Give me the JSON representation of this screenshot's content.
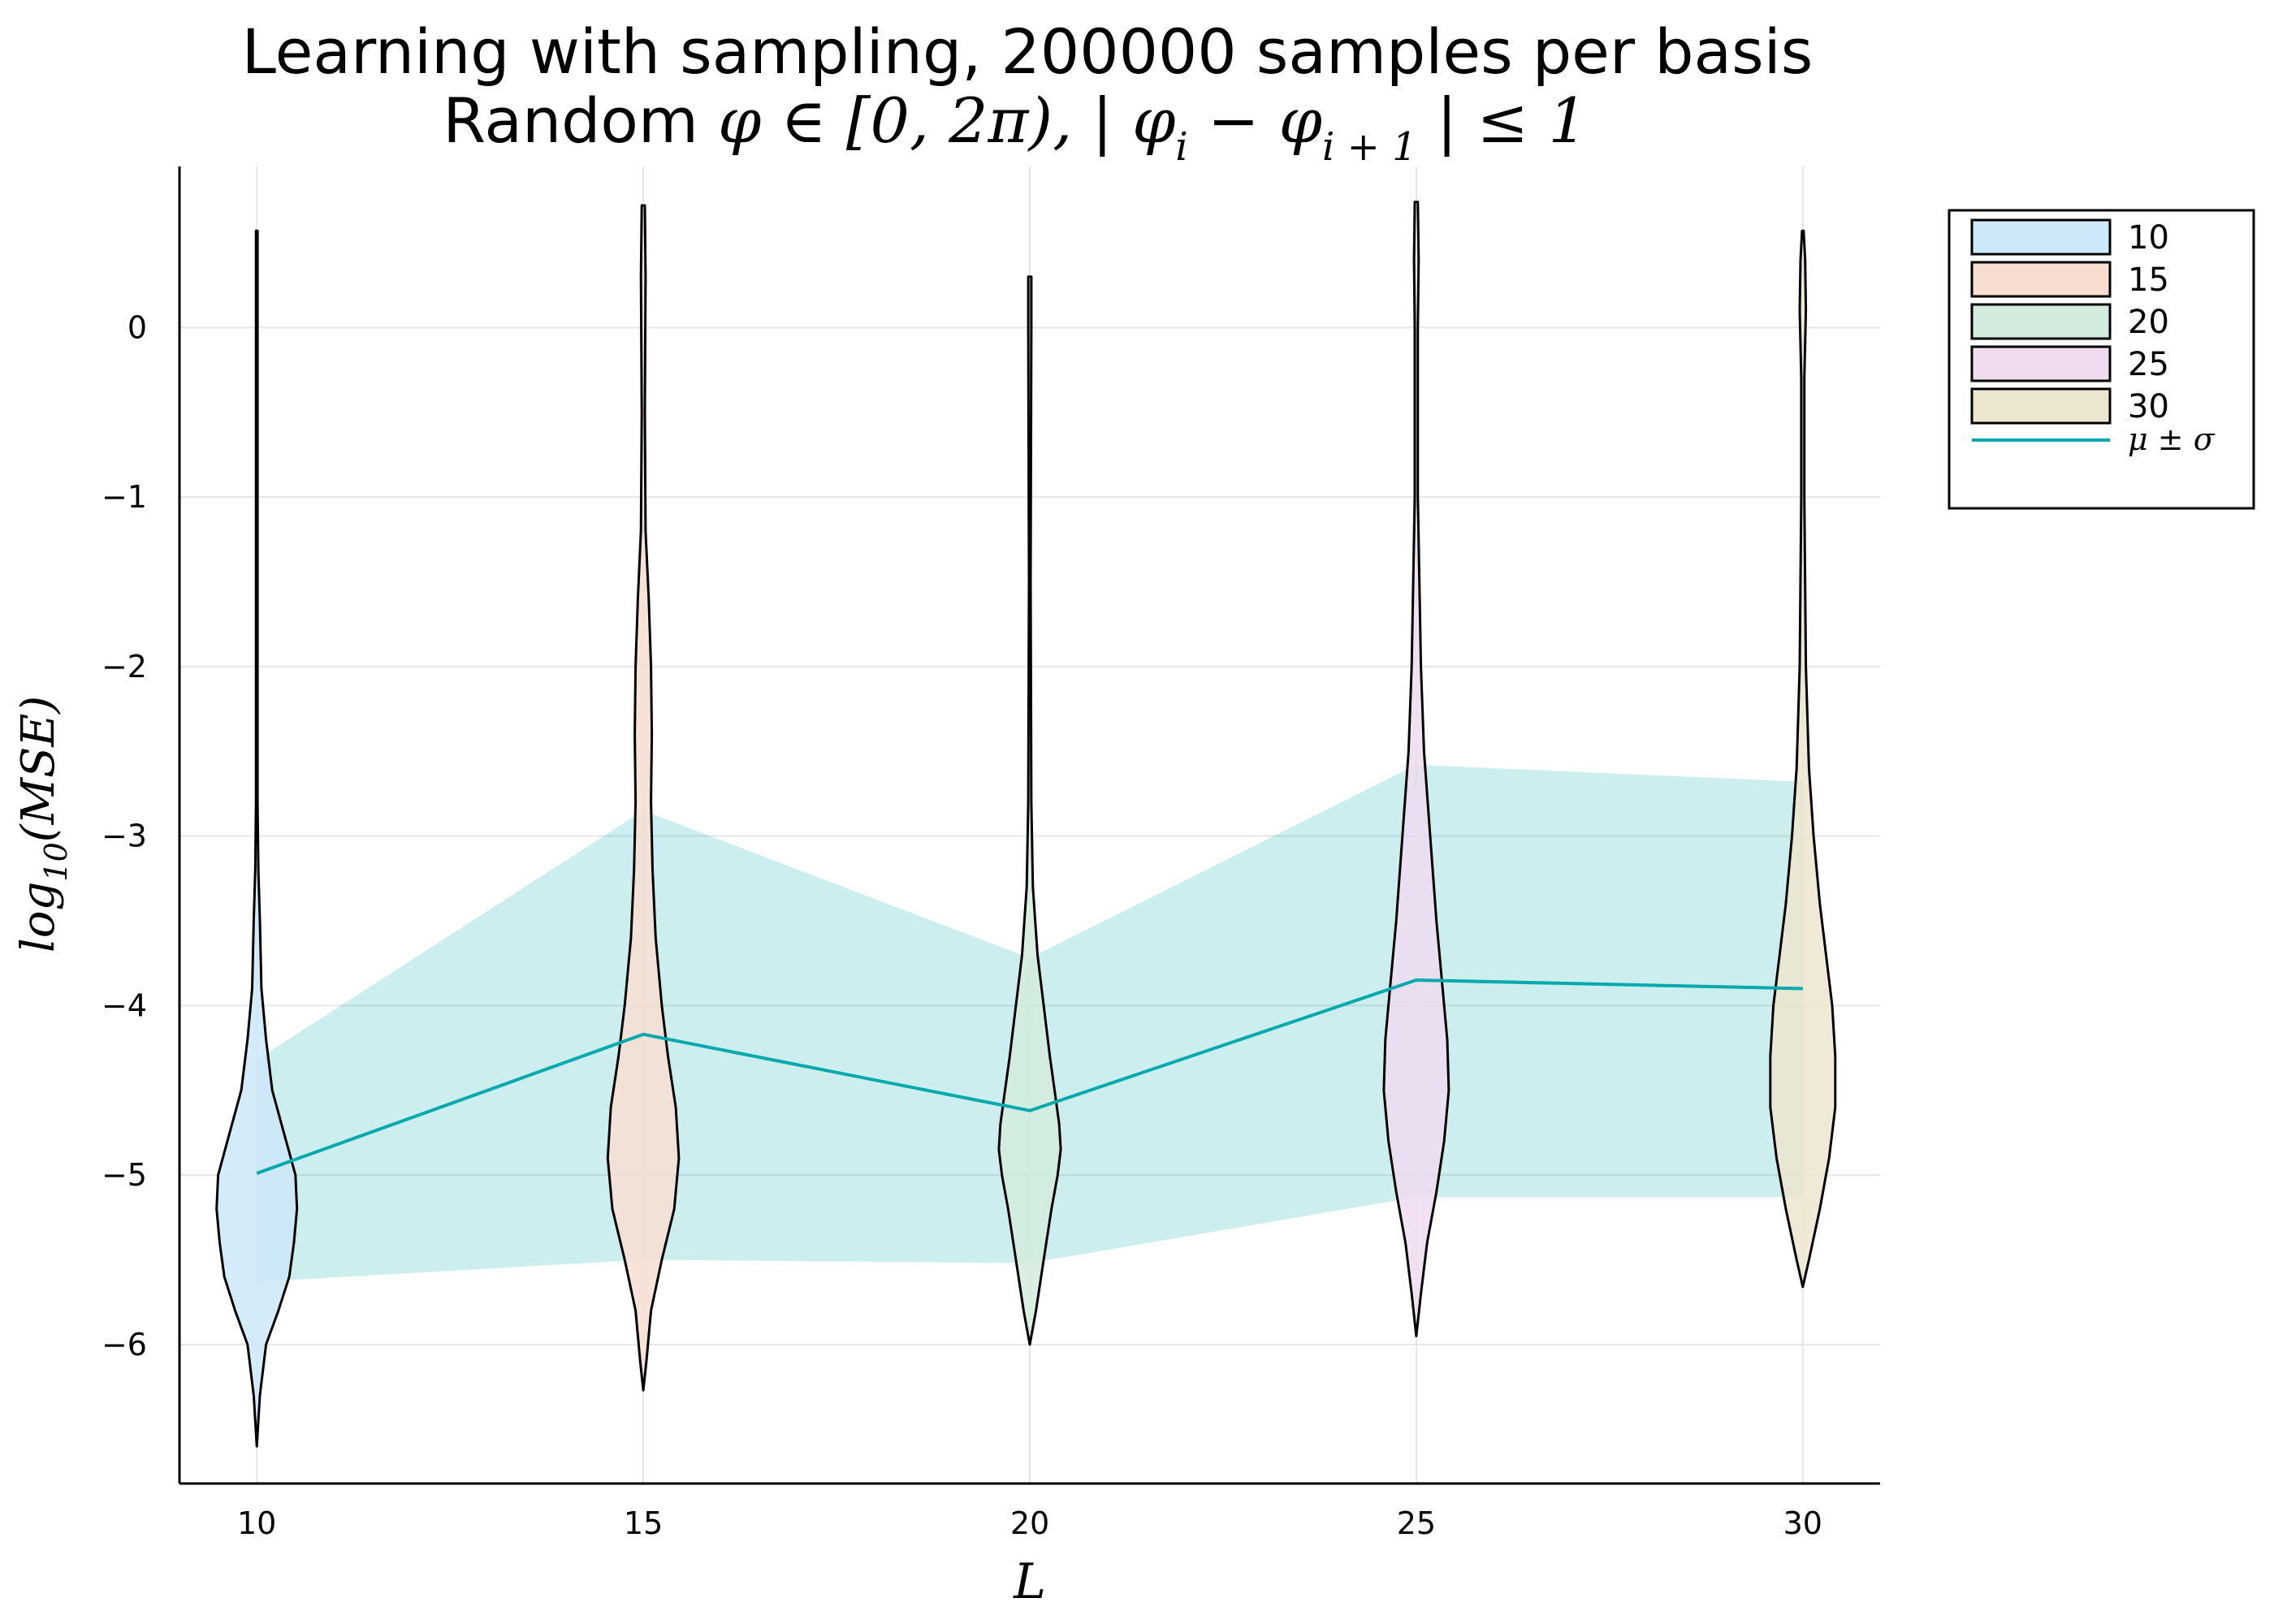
{
  "chart_data": {
    "type": "violin",
    "title": "Learning with sampling, 200000 samples per basis",
    "subtitle_prefix": "Random ",
    "subtitle_math": "φ ∈ [0, 2π), | φ",
    "subtitle_sub_i": "i",
    "subtitle_minus": " − φ",
    "subtitle_sub_i1": "i + 1",
    "subtitle_tail": " | ≤ 1",
    "xlabel": "L",
    "ylabel_log": "log",
    "ylabel_sub": "10",
    "ylabel_arg": "(MSE)",
    "xlim": [
      9,
      31
    ],
    "ylim": [
      -6.82,
      0.95
    ],
    "x_ticks": [
      10,
      15,
      20,
      25,
      30
    ],
    "x_tick_labels": [
      "10",
      "15",
      "20",
      "25",
      "30"
    ],
    "y_ticks": [
      0,
      -1,
      -2,
      -3,
      -4,
      -5,
      -6
    ],
    "y_tick_labels": [
      "0",
      "−1",
      "−2",
      "−3",
      "−4",
      "−5",
      "−6"
    ],
    "grid": true,
    "legend_position": "outer top-right",
    "violins": [
      {
        "name": "10",
        "x": 10,
        "color": "#cce8f9",
        "min": -6.6,
        "max": 0.57,
        "profile": [
          [
            -6.6,
            0.0
          ],
          [
            -6.3,
            0.04
          ],
          [
            -6.0,
            0.12
          ],
          [
            -5.8,
            0.28
          ],
          [
            -5.6,
            0.42
          ],
          [
            -5.4,
            0.48
          ],
          [
            -5.2,
            0.52
          ],
          [
            -5.0,
            0.5
          ],
          [
            -4.9,
            0.44
          ],
          [
            -4.7,
            0.32
          ],
          [
            -4.5,
            0.2
          ],
          [
            -4.2,
            0.12
          ],
          [
            -3.9,
            0.06
          ],
          [
            -3.5,
            0.04
          ],
          [
            -3.2,
            0.02
          ],
          [
            -2.8,
            0.01
          ],
          [
            0.57,
            0.01
          ]
        ]
      },
      {
        "name": "15",
        "x": 15,
        "color": "#f7ded1",
        "min": -6.27,
        "max": 0.72,
        "profile": [
          [
            -6.27,
            0.0
          ],
          [
            -6.1,
            0.04
          ],
          [
            -5.8,
            0.1
          ],
          [
            -5.5,
            0.24
          ],
          [
            -5.2,
            0.4
          ],
          [
            -4.9,
            0.46
          ],
          [
            -4.6,
            0.42
          ],
          [
            -4.3,
            0.32
          ],
          [
            -4.0,
            0.24
          ],
          [
            -3.6,
            0.16
          ],
          [
            -3.2,
            0.12
          ],
          [
            -2.8,
            0.1
          ],
          [
            -2.4,
            0.11
          ],
          [
            -2.0,
            0.1
          ],
          [
            -1.6,
            0.07
          ],
          [
            -1.2,
            0.03
          ],
          [
            -0.5,
            0.02
          ],
          [
            0.3,
            0.03
          ],
          [
            0.72,
            0.02
          ]
        ]
      },
      {
        "name": "20",
        "x": 20,
        "color": "#d3ebdd",
        "min": -6.0,
        "max": 0.3,
        "profile": [
          [
            -6.0,
            0.0
          ],
          [
            -5.8,
            0.08
          ],
          [
            -5.5,
            0.18
          ],
          [
            -5.2,
            0.28
          ],
          [
            -5.0,
            0.36
          ],
          [
            -4.85,
            0.4
          ],
          [
            -4.7,
            0.38
          ],
          [
            -4.5,
            0.32
          ],
          [
            -4.3,
            0.26
          ],
          [
            -4.0,
            0.18
          ],
          [
            -3.7,
            0.1
          ],
          [
            -3.3,
            0.04
          ],
          [
            -2.8,
            0.02
          ],
          [
            -1.5,
            0.01
          ],
          [
            0.0,
            0.02
          ],
          [
            0.3,
            0.02
          ]
        ]
      },
      {
        "name": "25",
        "x": 25,
        "color": "#efdcf1",
        "min": -5.95,
        "max": 0.74,
        "profile": [
          [
            -5.95,
            0.0
          ],
          [
            -5.7,
            0.06
          ],
          [
            -5.4,
            0.14
          ],
          [
            -5.1,
            0.26
          ],
          [
            -4.8,
            0.36
          ],
          [
            -4.5,
            0.42
          ],
          [
            -4.2,
            0.4
          ],
          [
            -3.9,
            0.34
          ],
          [
            -3.5,
            0.26
          ],
          [
            -3.0,
            0.18
          ],
          [
            -2.5,
            0.1
          ],
          [
            -2.0,
            0.06
          ],
          [
            -1.5,
            0.04
          ],
          [
            -1.0,
            0.02
          ],
          [
            -0.5,
            0.02
          ],
          [
            0.0,
            0.02
          ],
          [
            0.4,
            0.03
          ],
          [
            0.74,
            0.02
          ]
        ]
      },
      {
        "name": "30",
        "x": 30,
        "color": "#ece5cf",
        "min": -5.66,
        "max": 0.57,
        "profile": [
          [
            -5.66,
            0.0
          ],
          [
            -5.5,
            0.08
          ],
          [
            -5.2,
            0.22
          ],
          [
            -4.9,
            0.34
          ],
          [
            -4.6,
            0.42
          ],
          [
            -4.3,
            0.42
          ],
          [
            -4.0,
            0.38
          ],
          [
            -3.7,
            0.3
          ],
          [
            -3.4,
            0.22
          ],
          [
            -3.0,
            0.14
          ],
          [
            -2.6,
            0.08
          ],
          [
            -2.0,
            0.04
          ],
          [
            -1.0,
            0.02
          ],
          [
            -0.3,
            0.02
          ],
          [
            0.1,
            0.04
          ],
          [
            0.4,
            0.03
          ],
          [
            0.57,
            0.01
          ]
        ]
      }
    ],
    "series": [
      {
        "name": "μ ± σ",
        "color": "#00a9ad",
        "x": [
          10,
          15,
          20,
          25,
          30
        ],
        "mean": [
          -4.99,
          -4.17,
          -4.62,
          -3.85,
          -3.9
        ],
        "upper": [
          -4.32,
          -2.85,
          -3.72,
          -2.58,
          -2.68
        ],
        "lower": [
          -5.63,
          -5.5,
          -5.52,
          -5.13,
          -5.13
        ]
      }
    ]
  }
}
